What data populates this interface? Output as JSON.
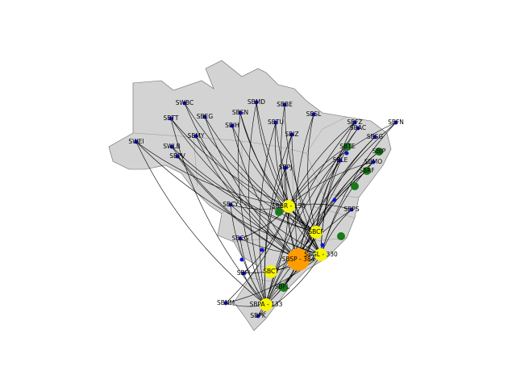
{
  "airports": [
    {
      "label": "SWBC"
    },
    {
      "label": "SBMD"
    },
    {
      "label": "SBBE"
    },
    {
      "label": "SBTT"
    },
    {
      "label": "SBEG"
    },
    {
      "label": "SBSN"
    },
    {
      "label": "SBIH"
    },
    {
      "label": "SBTU"
    },
    {
      "label": "SBSL"
    },
    {
      "label": "SBFZ"
    },
    {
      "label": "SBAC"
    },
    {
      "label": "SBFN"
    },
    {
      "label": "SBSG"
    },
    {
      "label": "SWEI"
    },
    {
      "label": "SBMY"
    },
    {
      "label": "SBIZ"
    },
    {
      "label": "SWLB"
    },
    {
      "label": "SBTE"
    },
    {
      "label": "SBJP"
    },
    {
      "label": "SBMO"
    },
    {
      "label": "SBPV"
    },
    {
      "label": "SBPJ"
    },
    {
      "label": "SBLE"
    },
    {
      "label": "SBCY"
    },
    {
      "label": "SBBR - 150"
    },
    {
      "label": "SBCG"
    },
    {
      "label": "SBSP - 384"
    },
    {
      "label": "SBGL - 330"
    },
    {
      "label": "SBCT"
    },
    {
      "label": "SBFI"
    },
    {
      "label": "SBFL"
    },
    {
      "label": "SBNM"
    },
    {
      "label": "SBPA - 133"
    },
    {
      "label": "SBPK"
    },
    {
      "label": "SBCF"
    },
    {
      "label": "SBPS"
    },
    {
      "label": "SBRF"
    }
  ]
}
